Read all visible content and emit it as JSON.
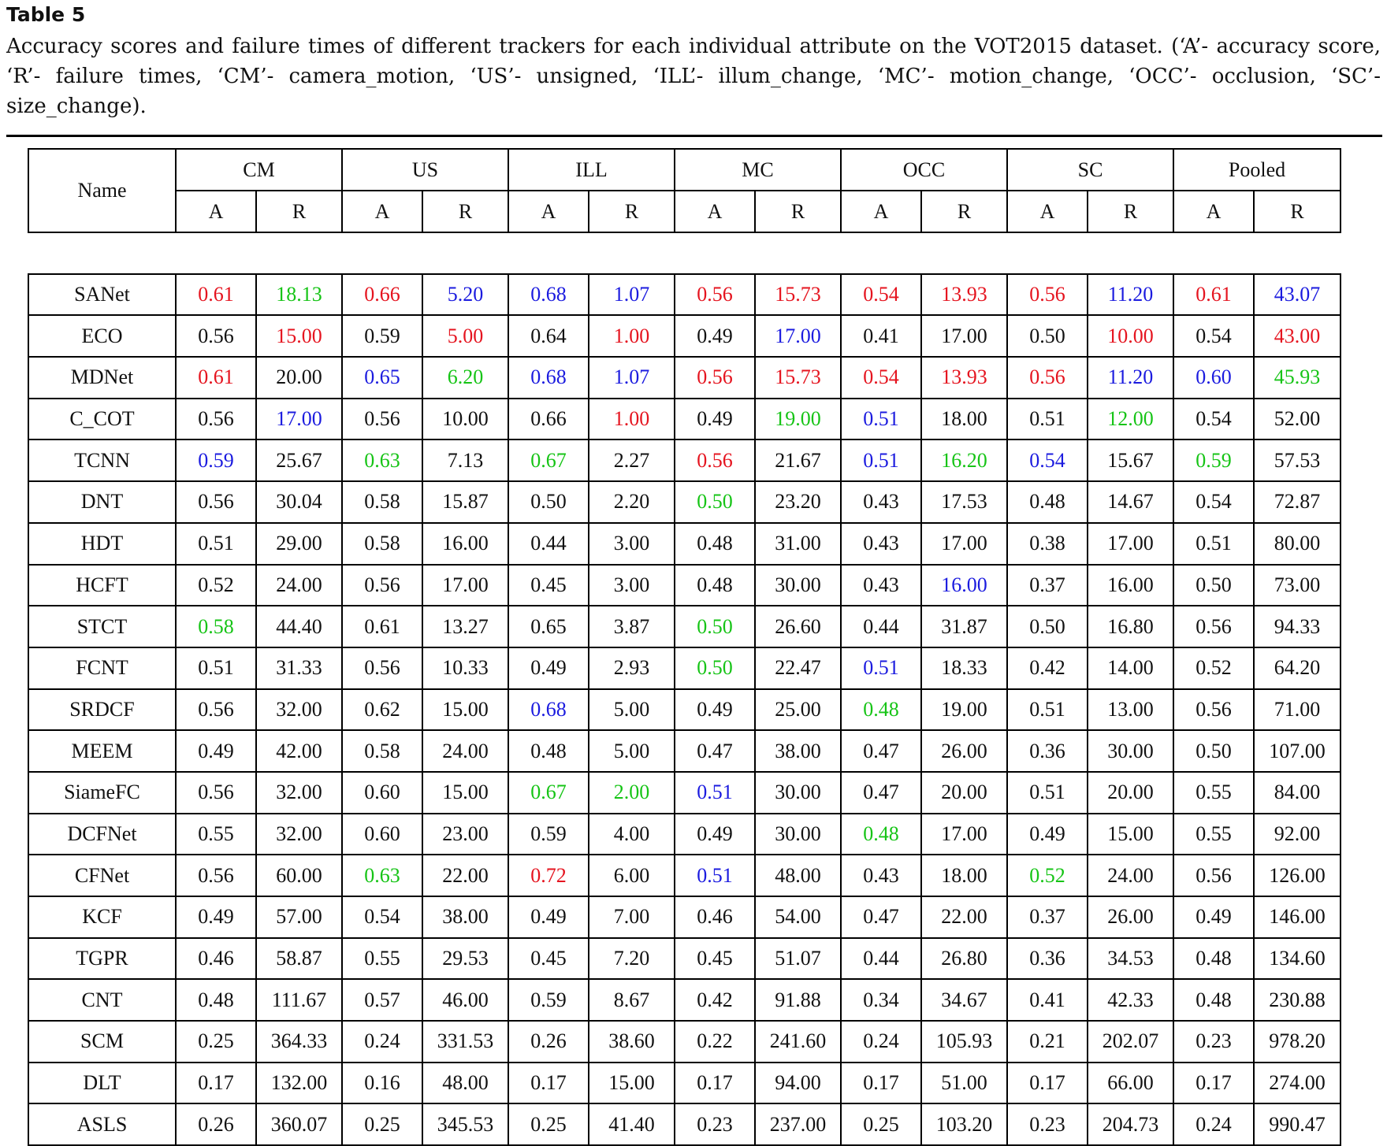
{
  "table_label": "Table 5",
  "caption": "Accuracy scores and failure times of different trackers for each individual attribute on the VOT2015 dataset. (‘A’- accuracy score, ‘R’- failure times, ‘CM’- camera_motion, ‘US’- unsigned, ‘ILL’- illum_change, ‘MC’- motion_change, ‘OCC’- occlusion, ‘SC’- size_change).",
  "header": {
    "name": "Name",
    "groups": [
      "CM",
      "US",
      "ILL",
      "MC",
      "OCC",
      "SC",
      "Pooled"
    ],
    "sub": [
      "A",
      "R"
    ]
  },
  "colors": {
    "red": "#e5141f",
    "green": "#16c416",
    "blue": "#1b1bdf"
  },
  "rows": [
    {
      "name": "SANet",
      "cells": [
        {
          "v": "0.61",
          "c": "red"
        },
        {
          "v": "18.13",
          "c": "green"
        },
        {
          "v": "0.66",
          "c": "red"
        },
        {
          "v": "5.20",
          "c": "blue"
        },
        {
          "v": "0.68",
          "c": "blue"
        },
        {
          "v": "1.07",
          "c": "blue"
        },
        {
          "v": "0.56",
          "c": "red"
        },
        {
          "v": "15.73",
          "c": "red"
        },
        {
          "v": "0.54",
          "c": "red"
        },
        {
          "v": "13.93",
          "c": "red"
        },
        {
          "v": "0.56",
          "c": "red"
        },
        {
          "v": "11.20",
          "c": "blue"
        },
        {
          "v": "0.61",
          "c": "red"
        },
        {
          "v": "43.07",
          "c": "blue"
        }
      ]
    },
    {
      "name": "ECO",
      "cells": [
        {
          "v": "0.56"
        },
        {
          "v": "15.00",
          "c": "red"
        },
        {
          "v": "0.59"
        },
        {
          "v": "5.00",
          "c": "red"
        },
        {
          "v": "0.64"
        },
        {
          "v": "1.00",
          "c": "red"
        },
        {
          "v": "0.49"
        },
        {
          "v": "17.00",
          "c": "blue"
        },
        {
          "v": "0.41"
        },
        {
          "v": "17.00"
        },
        {
          "v": "0.50"
        },
        {
          "v": "10.00",
          "c": "red"
        },
        {
          "v": "0.54"
        },
        {
          "v": "43.00",
          "c": "red"
        }
      ]
    },
    {
      "name": "MDNet",
      "cells": [
        {
          "v": "0.61",
          "c": "red"
        },
        {
          "v": "20.00"
        },
        {
          "v": "0.65",
          "c": "blue"
        },
        {
          "v": "6.20",
          "c": "green"
        },
        {
          "v": "0.68",
          "c": "blue"
        },
        {
          "v": "1.07",
          "c": "blue"
        },
        {
          "v": "0.56",
          "c": "red"
        },
        {
          "v": "15.73",
          "c": "red"
        },
        {
          "v": "0.54",
          "c": "red"
        },
        {
          "v": "13.93",
          "c": "red"
        },
        {
          "v": "0.56",
          "c": "red"
        },
        {
          "v": "11.20",
          "c": "blue"
        },
        {
          "v": "0.60",
          "c": "blue"
        },
        {
          "v": "45.93",
          "c": "green"
        }
      ]
    },
    {
      "name": "C_COT",
      "cells": [
        {
          "v": "0.56"
        },
        {
          "v": "17.00",
          "c": "blue"
        },
        {
          "v": "0.56"
        },
        {
          "v": "10.00"
        },
        {
          "v": "0.66"
        },
        {
          "v": "1.00",
          "c": "red"
        },
        {
          "v": "0.49"
        },
        {
          "v": "19.00",
          "c": "green"
        },
        {
          "v": "0.51",
          "c": "blue"
        },
        {
          "v": "18.00"
        },
        {
          "v": "0.51"
        },
        {
          "v": "12.00",
          "c": "green"
        },
        {
          "v": "0.54"
        },
        {
          "v": "52.00"
        }
      ]
    },
    {
      "name": "TCNN",
      "cells": [
        {
          "v": "0.59",
          "c": "blue"
        },
        {
          "v": "25.67"
        },
        {
          "v": "0.63",
          "c": "green"
        },
        {
          "v": "7.13"
        },
        {
          "v": "0.67",
          "c": "green"
        },
        {
          "v": "2.27"
        },
        {
          "v": "0.56",
          "c": "red"
        },
        {
          "v": "21.67"
        },
        {
          "v": "0.51",
          "c": "blue"
        },
        {
          "v": "16.20",
          "c": "green"
        },
        {
          "v": "0.54",
          "c": "blue"
        },
        {
          "v": "15.67"
        },
        {
          "v": "0.59",
          "c": "green"
        },
        {
          "v": "57.53"
        }
      ]
    },
    {
      "name": "DNT",
      "cells": [
        {
          "v": "0.56"
        },
        {
          "v": "30.04"
        },
        {
          "v": "0.58"
        },
        {
          "v": "15.87"
        },
        {
          "v": "0.50"
        },
        {
          "v": "2.20"
        },
        {
          "v": "0.50",
          "c": "green"
        },
        {
          "v": "23.20"
        },
        {
          "v": "0.43"
        },
        {
          "v": "17.53"
        },
        {
          "v": "0.48"
        },
        {
          "v": "14.67"
        },
        {
          "v": "0.54"
        },
        {
          "v": "72.87"
        }
      ]
    },
    {
      "name": "HDT",
      "cells": [
        {
          "v": "0.51"
        },
        {
          "v": "29.00"
        },
        {
          "v": "0.58"
        },
        {
          "v": "16.00"
        },
        {
          "v": "0.44"
        },
        {
          "v": "3.00"
        },
        {
          "v": "0.48"
        },
        {
          "v": "31.00"
        },
        {
          "v": "0.43"
        },
        {
          "v": "17.00"
        },
        {
          "v": "0.38"
        },
        {
          "v": "17.00"
        },
        {
          "v": "0.51"
        },
        {
          "v": "80.00"
        }
      ]
    },
    {
      "name": "HCFT",
      "cells": [
        {
          "v": "0.52"
        },
        {
          "v": "24.00"
        },
        {
          "v": "0.56"
        },
        {
          "v": "17.00"
        },
        {
          "v": "0.45"
        },
        {
          "v": "3.00"
        },
        {
          "v": "0.48"
        },
        {
          "v": "30.00"
        },
        {
          "v": "0.43"
        },
        {
          "v": "16.00",
          "c": "blue"
        },
        {
          "v": "0.37"
        },
        {
          "v": "16.00"
        },
        {
          "v": "0.50"
        },
        {
          "v": "73.00"
        }
      ]
    },
    {
      "name": "STCT",
      "cells": [
        {
          "v": "0.58",
          "c": "green"
        },
        {
          "v": "44.40"
        },
        {
          "v": "0.61"
        },
        {
          "v": "13.27"
        },
        {
          "v": "0.65"
        },
        {
          "v": "3.87"
        },
        {
          "v": "0.50",
          "c": "green"
        },
        {
          "v": "26.60"
        },
        {
          "v": "0.44"
        },
        {
          "v": "31.87"
        },
        {
          "v": "0.50"
        },
        {
          "v": "16.80"
        },
        {
          "v": "0.56"
        },
        {
          "v": "94.33"
        }
      ]
    },
    {
      "name": "FCNT",
      "cells": [
        {
          "v": "0.51"
        },
        {
          "v": "31.33"
        },
        {
          "v": "0.56"
        },
        {
          "v": "10.33"
        },
        {
          "v": "0.49"
        },
        {
          "v": "2.93"
        },
        {
          "v": "0.50",
          "c": "green"
        },
        {
          "v": "22.47"
        },
        {
          "v": "0.51",
          "c": "blue"
        },
        {
          "v": "18.33"
        },
        {
          "v": "0.42"
        },
        {
          "v": "14.00"
        },
        {
          "v": "0.52"
        },
        {
          "v": "64.20"
        }
      ]
    },
    {
      "name": "SRDCF",
      "cells": [
        {
          "v": "0.56"
        },
        {
          "v": "32.00"
        },
        {
          "v": "0.62"
        },
        {
          "v": "15.00"
        },
        {
          "v": "0.68",
          "c": "blue"
        },
        {
          "v": "5.00"
        },
        {
          "v": "0.49"
        },
        {
          "v": "25.00"
        },
        {
          "v": "0.48",
          "c": "green"
        },
        {
          "v": "19.00"
        },
        {
          "v": "0.51"
        },
        {
          "v": "13.00"
        },
        {
          "v": "0.56"
        },
        {
          "v": "71.00"
        }
      ]
    },
    {
      "name": "MEEM",
      "cells": [
        {
          "v": "0.49"
        },
        {
          "v": "42.00"
        },
        {
          "v": "0.58"
        },
        {
          "v": "24.00"
        },
        {
          "v": "0.48"
        },
        {
          "v": "5.00"
        },
        {
          "v": "0.47"
        },
        {
          "v": "38.00"
        },
        {
          "v": "0.47"
        },
        {
          "v": "26.00"
        },
        {
          "v": "0.36"
        },
        {
          "v": "30.00"
        },
        {
          "v": "0.50"
        },
        {
          "v": "107.00"
        }
      ]
    },
    {
      "name": "SiameFC",
      "cells": [
        {
          "v": "0.56"
        },
        {
          "v": "32.00"
        },
        {
          "v": "0.60"
        },
        {
          "v": "15.00"
        },
        {
          "v": "0.67",
          "c": "green"
        },
        {
          "v": "2.00",
          "c": "green"
        },
        {
          "v": "0.51",
          "c": "blue"
        },
        {
          "v": "30.00"
        },
        {
          "v": "0.47"
        },
        {
          "v": "20.00"
        },
        {
          "v": "0.51"
        },
        {
          "v": "20.00"
        },
        {
          "v": "0.55"
        },
        {
          "v": "84.00"
        }
      ]
    },
    {
      "name": "DCFNet",
      "cells": [
        {
          "v": "0.55"
        },
        {
          "v": "32.00"
        },
        {
          "v": "0.60"
        },
        {
          "v": "23.00"
        },
        {
          "v": "0.59"
        },
        {
          "v": "4.00"
        },
        {
          "v": "0.49"
        },
        {
          "v": "30.00"
        },
        {
          "v": "0.48",
          "c": "green"
        },
        {
          "v": "17.00"
        },
        {
          "v": "0.49"
        },
        {
          "v": "15.00"
        },
        {
          "v": "0.55"
        },
        {
          "v": "92.00"
        }
      ]
    },
    {
      "name": "CFNet",
      "cells": [
        {
          "v": "0.56"
        },
        {
          "v": "60.00"
        },
        {
          "v": "0.63",
          "c": "green"
        },
        {
          "v": "22.00"
        },
        {
          "v": "0.72",
          "c": "red"
        },
        {
          "v": "6.00"
        },
        {
          "v": "0.51",
          "c": "blue"
        },
        {
          "v": "48.00"
        },
        {
          "v": "0.43"
        },
        {
          "v": "18.00"
        },
        {
          "v": "0.52",
          "c": "green"
        },
        {
          "v": "24.00"
        },
        {
          "v": "0.56"
        },
        {
          "v": "126.00"
        }
      ]
    },
    {
      "name": "KCF",
      "cells": [
        {
          "v": "0.49"
        },
        {
          "v": "57.00"
        },
        {
          "v": "0.54"
        },
        {
          "v": "38.00"
        },
        {
          "v": "0.49"
        },
        {
          "v": "7.00"
        },
        {
          "v": "0.46"
        },
        {
          "v": "54.00"
        },
        {
          "v": "0.47"
        },
        {
          "v": "22.00"
        },
        {
          "v": "0.37"
        },
        {
          "v": "26.00"
        },
        {
          "v": "0.49"
        },
        {
          "v": "146.00"
        }
      ]
    },
    {
      "name": "TGPR",
      "cells": [
        {
          "v": "0.46"
        },
        {
          "v": "58.87"
        },
        {
          "v": "0.55"
        },
        {
          "v": "29.53"
        },
        {
          "v": "0.45"
        },
        {
          "v": "7.20"
        },
        {
          "v": "0.45"
        },
        {
          "v": "51.07"
        },
        {
          "v": "0.44"
        },
        {
          "v": "26.80"
        },
        {
          "v": "0.36"
        },
        {
          "v": "34.53"
        },
        {
          "v": "0.48"
        },
        {
          "v": "134.60"
        }
      ]
    },
    {
      "name": "CNT",
      "cells": [
        {
          "v": "0.48"
        },
        {
          "v": "111.67"
        },
        {
          "v": "0.57"
        },
        {
          "v": "46.00"
        },
        {
          "v": "0.59"
        },
        {
          "v": "8.67"
        },
        {
          "v": "0.42"
        },
        {
          "v": "91.88"
        },
        {
          "v": "0.34"
        },
        {
          "v": "34.67"
        },
        {
          "v": "0.41"
        },
        {
          "v": "42.33"
        },
        {
          "v": "0.48"
        },
        {
          "v": "230.88"
        }
      ]
    },
    {
      "name": "SCM",
      "cells": [
        {
          "v": "0.25"
        },
        {
          "v": "364.33"
        },
        {
          "v": "0.24"
        },
        {
          "v": "331.53"
        },
        {
          "v": "0.26"
        },
        {
          "v": "38.60"
        },
        {
          "v": "0.22"
        },
        {
          "v": "241.60"
        },
        {
          "v": "0.24"
        },
        {
          "v": "105.93"
        },
        {
          "v": "0.21"
        },
        {
          "v": "202.07"
        },
        {
          "v": "0.23"
        },
        {
          "v": "978.20"
        }
      ]
    },
    {
      "name": "DLT",
      "cells": [
        {
          "v": "0.17"
        },
        {
          "v": "132.00"
        },
        {
          "v": "0.16"
        },
        {
          "v": "48.00"
        },
        {
          "v": "0.17"
        },
        {
          "v": "15.00"
        },
        {
          "v": "0.17"
        },
        {
          "v": "94.00"
        },
        {
          "v": "0.17"
        },
        {
          "v": "51.00"
        },
        {
          "v": "0.17"
        },
        {
          "v": "66.00"
        },
        {
          "v": "0.17"
        },
        {
          "v": "274.00"
        }
      ]
    },
    {
      "name": "ASLS",
      "cells": [
        {
          "v": "0.26"
        },
        {
          "v": "360.07"
        },
        {
          "v": "0.25"
        },
        {
          "v": "345.53"
        },
        {
          "v": "0.25"
        },
        {
          "v": "41.40"
        },
        {
          "v": "0.23"
        },
        {
          "v": "237.00"
        },
        {
          "v": "0.25"
        },
        {
          "v": "103.20"
        },
        {
          "v": "0.23"
        },
        {
          "v": "204.73"
        },
        {
          "v": "0.24"
        },
        {
          "v": "990.47"
        }
      ]
    }
  ]
}
